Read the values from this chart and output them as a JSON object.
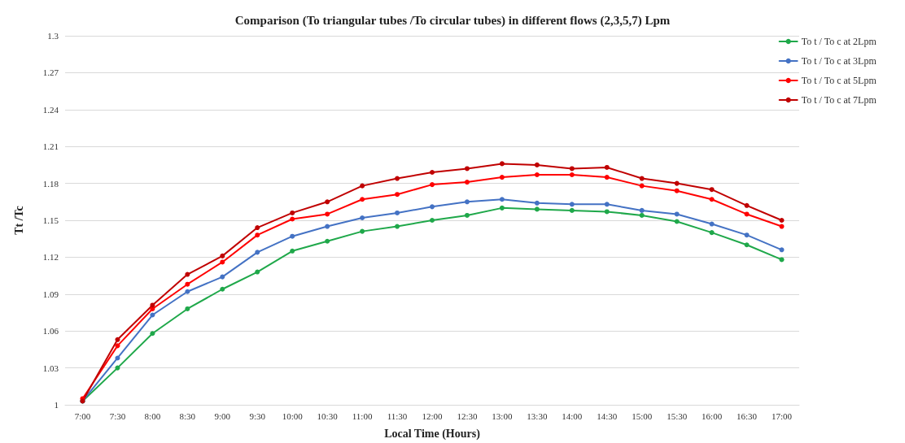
{
  "chart_data": {
    "type": "line",
    "title": "Comparison (To triangular tubes /To circular tubes) in different flows (2,3,5,7) Lpm",
    "xlabel": "Local Time (Hours)",
    "ylabel": "Tt /Tc",
    "categories": [
      "7:00",
      "7:30",
      "8:00",
      "8:30",
      "9:00",
      "9:30",
      "10:00",
      "10:30",
      "11:00",
      "11:30",
      "12:00",
      "12:30",
      "13:00",
      "13:30",
      "14:00",
      "14:30",
      "15:00",
      "15:30",
      "16:00",
      "16:30",
      "17:00"
    ],
    "series": [
      {
        "name": "To t / To c at 2Lpm",
        "color": "#1fa84a",
        "values": [
          1.003,
          1.03,
          1.058,
          1.078,
          1.094,
          1.108,
          1.125,
          1.133,
          1.141,
          1.145,
          1.15,
          1.154,
          1.16,
          1.159,
          1.158,
          1.157,
          1.154,
          1.149,
          1.14,
          1.13,
          1.118
        ]
      },
      {
        "name": "To t / To c at 3Lpm",
        "color": "#4472c4",
        "values": [
          1.003,
          1.038,
          1.073,
          1.092,
          1.104,
          1.124,
          1.137,
          1.145,
          1.152,
          1.156,
          1.161,
          1.165,
          1.167,
          1.164,
          1.163,
          1.163,
          1.158,
          1.155,
          1.147,
          1.138,
          1.126
        ]
      },
      {
        "name": "To t / To c at 5Lpm",
        "color": "#ff0000",
        "values": [
          1.005,
          1.048,
          1.078,
          1.098,
          1.116,
          1.138,
          1.151,
          1.155,
          1.167,
          1.171,
          1.179,
          1.181,
          1.185,
          1.187,
          1.187,
          1.185,
          1.178,
          1.174,
          1.167,
          1.155,
          1.145
        ]
      },
      {
        "name": "To t / To c at 7Lpm",
        "color": "#c00000",
        "values": [
          1.003,
          1.053,
          1.081,
          1.106,
          1.121,
          1.144,
          1.156,
          1.165,
          1.178,
          1.184,
          1.189,
          1.192,
          1.196,
          1.195,
          1.192,
          1.193,
          1.184,
          1.18,
          1.175,
          1.162,
          1.15
        ]
      }
    ],
    "ylim": [
      1,
      1.3
    ],
    "yticks": [
      1,
      1.03,
      1.06,
      1.09,
      1.12,
      1.15,
      1.18,
      1.21,
      1.24,
      1.27,
      1.3
    ],
    "grid": "y",
    "legend": "top right",
    "marker": "circle",
    "line_style": "solid"
  }
}
